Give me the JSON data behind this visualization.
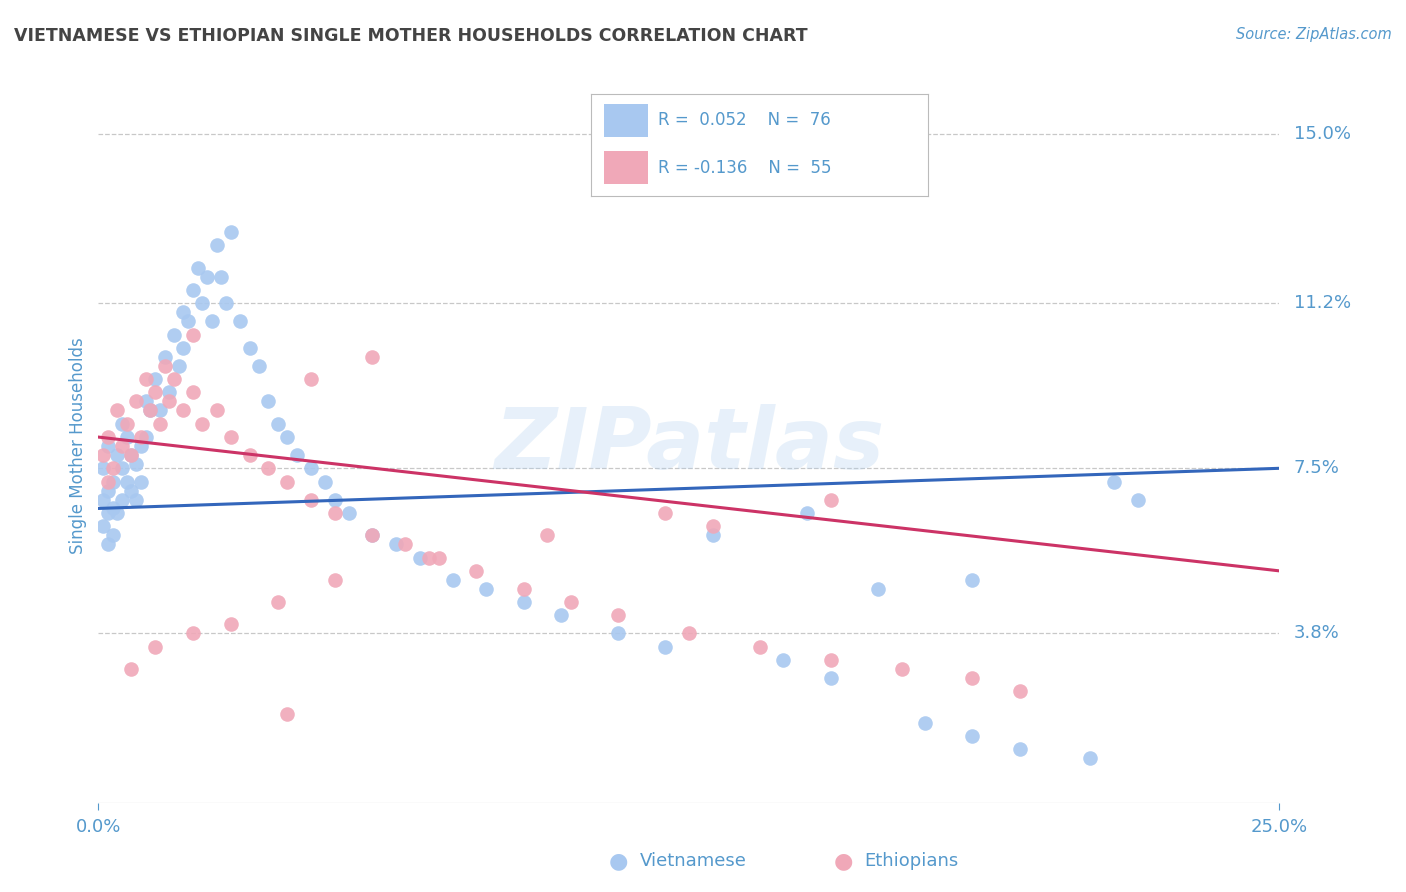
{
  "title": "VIETNAMESE VS ETHIOPIAN SINGLE MOTHER HOUSEHOLDS CORRELATION CHART",
  "source": "Source: ZipAtlas.com",
  "ylabel": "Single Mother Households",
  "xlim": [
    0.0,
    0.25
  ],
  "ylim": [
    0.0,
    0.16
  ],
  "ytick_positions": [
    0.038,
    0.075,
    0.112,
    0.15
  ],
  "ytick_labels": [
    "3.8%",
    "7.5%",
    "11.2%",
    "15.0%"
  ],
  "grid_color": "#c8c8c8",
  "background_color": "#ffffff",
  "color_vietnamese": "#a8c8f0",
  "color_ethiopian": "#f0a8b8",
  "line_color_vietnamese": "#3366bb",
  "line_color_ethiopian": "#cc3366",
  "label_color": "#5599cc",
  "title_color": "#444444",
  "vietnamese_x": [
    0.001,
    0.001,
    0.001,
    0.002,
    0.002,
    0.002,
    0.002,
    0.003,
    0.003,
    0.003,
    0.004,
    0.004,
    0.005,
    0.005,
    0.005,
    0.006,
    0.006,
    0.007,
    0.007,
    0.008,
    0.008,
    0.009,
    0.009,
    0.01,
    0.01,
    0.011,
    0.012,
    0.013,
    0.014,
    0.015,
    0.016,
    0.017,
    0.018,
    0.018,
    0.019,
    0.02,
    0.021,
    0.022,
    0.023,
    0.024,
    0.025,
    0.026,
    0.027,
    0.028,
    0.03,
    0.032,
    0.034,
    0.036,
    0.038,
    0.04,
    0.042,
    0.045,
    0.048,
    0.05,
    0.053,
    0.058,
    0.063,
    0.068,
    0.075,
    0.082,
    0.09,
    0.098,
    0.11,
    0.12,
    0.145,
    0.155,
    0.175,
    0.185,
    0.195,
    0.21,
    0.215,
    0.22,
    0.185,
    0.165,
    0.15,
    0.13
  ],
  "vietnamese_y": [
    0.075,
    0.068,
    0.062,
    0.08,
    0.07,
    0.065,
    0.058,
    0.072,
    0.066,
    0.06,
    0.078,
    0.065,
    0.085,
    0.075,
    0.068,
    0.082,
    0.072,
    0.078,
    0.07,
    0.076,
    0.068,
    0.08,
    0.072,
    0.09,
    0.082,
    0.088,
    0.095,
    0.088,
    0.1,
    0.092,
    0.105,
    0.098,
    0.11,
    0.102,
    0.108,
    0.115,
    0.12,
    0.112,
    0.118,
    0.108,
    0.125,
    0.118,
    0.112,
    0.128,
    0.108,
    0.102,
    0.098,
    0.09,
    0.085,
    0.082,
    0.078,
    0.075,
    0.072,
    0.068,
    0.065,
    0.06,
    0.058,
    0.055,
    0.05,
    0.048,
    0.045,
    0.042,
    0.038,
    0.035,
    0.032,
    0.028,
    0.018,
    0.015,
    0.012,
    0.01,
    0.072,
    0.068,
    0.05,
    0.048,
    0.065,
    0.06
  ],
  "ethiopian_x": [
    0.001,
    0.002,
    0.002,
    0.003,
    0.004,
    0.005,
    0.006,
    0.007,
    0.008,
    0.009,
    0.01,
    0.011,
    0.012,
    0.013,
    0.014,
    0.015,
    0.016,
    0.018,
    0.02,
    0.022,
    0.025,
    0.028,
    0.032,
    0.036,
    0.04,
    0.045,
    0.05,
    0.058,
    0.065,
    0.072,
    0.08,
    0.09,
    0.1,
    0.11,
    0.125,
    0.14,
    0.155,
    0.17,
    0.185,
    0.195,
    0.155,
    0.12,
    0.095,
    0.07,
    0.05,
    0.038,
    0.028,
    0.02,
    0.012,
    0.007,
    0.058,
    0.02,
    0.045,
    0.13,
    0.04
  ],
  "ethiopian_y": [
    0.078,
    0.072,
    0.082,
    0.075,
    0.088,
    0.08,
    0.085,
    0.078,
    0.09,
    0.082,
    0.095,
    0.088,
    0.092,
    0.085,
    0.098,
    0.09,
    0.095,
    0.088,
    0.092,
    0.085,
    0.088,
    0.082,
    0.078,
    0.075,
    0.072,
    0.068,
    0.065,
    0.06,
    0.058,
    0.055,
    0.052,
    0.048,
    0.045,
    0.042,
    0.038,
    0.035,
    0.032,
    0.03,
    0.028,
    0.025,
    0.068,
    0.065,
    0.06,
    0.055,
    0.05,
    0.045,
    0.04,
    0.038,
    0.035,
    0.03,
    0.1,
    0.105,
    0.095,
    0.062,
    0.02
  ],
  "viet_trend_x": [
    0.0,
    0.25
  ],
  "viet_trend_y": [
    0.066,
    0.075
  ],
  "eth_trend_x": [
    0.0,
    0.25
  ],
  "eth_trend_y": [
    0.082,
    0.052
  ]
}
